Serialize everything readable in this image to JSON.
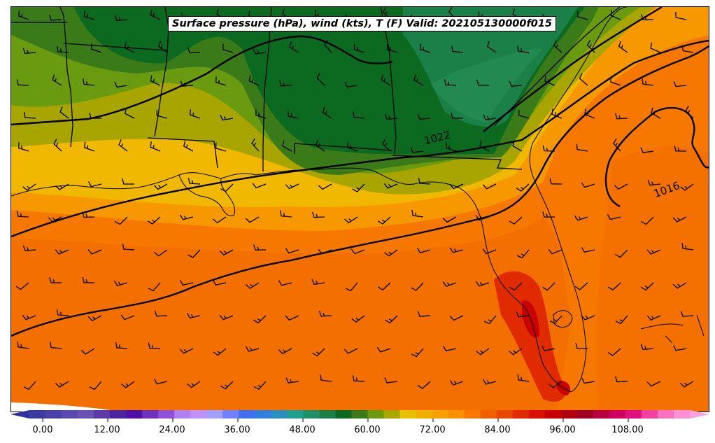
{
  "title": "Surface pressure (hPa), wind (kts), T (F) Valid: 202105130000f015",
  "isobar_labels": [
    {
      "text": "1022"
    },
    {
      "text": "1016"
    }
  ],
  "colorbar": {
    "tick_labels": [
      "0.00",
      "12.00",
      "24.00",
      "36.00",
      "48.00",
      "60.00",
      "72.00",
      "84.00",
      "96.00",
      "108.00"
    ],
    "colors": [
      "#3b3ba0",
      "#4a42a8",
      "#5a4ab0",
      "#6a52b0",
      "#5c3aa8",
      "#4b22a0",
      "#5010a8",
      "#7030c0",
      "#9050d8",
      "#b080f0",
      "#c090f8",
      "#a0a0ff",
      "#7080ff",
      "#4070f0",
      "#3080e0",
      "#2a90c0",
      "#20a090",
      "#209068",
      "#1a8048",
      "#0c6a20",
      "#3a7a18",
      "#6a9a10",
      "#a8a800",
      "#e8c000",
      "#f0b000",
      "#f8a000",
      "#f89000",
      "#f87800",
      "#f06000",
      "#e84800",
      "#e02a00",
      "#d81000",
      "#c80000",
      "#b00010",
      "#a00020",
      "#b80040",
      "#d00060",
      "#e01080",
      "#f040a0",
      "#f870c0",
      "#ff90d8"
    ],
    "min_color": "#3030a0",
    "max_color": "#ffa0e0"
  },
  "legend_fields": [
    "Surface pressure (hPa)",
    "wind (kts)",
    "T (F)"
  ]
}
